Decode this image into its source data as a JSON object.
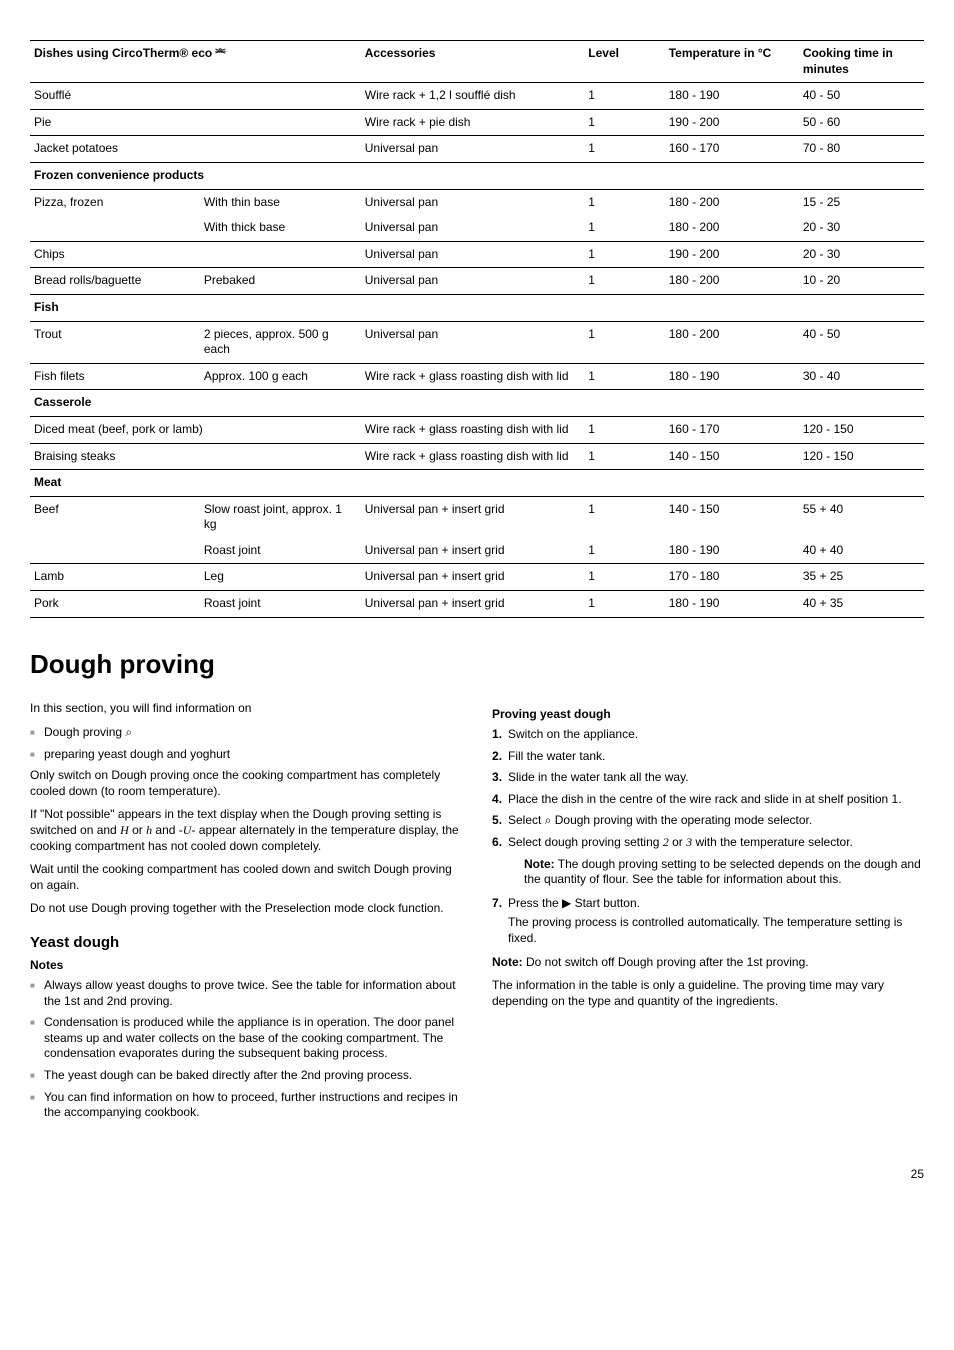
{
  "table": {
    "headers": [
      "Dishes using CircoTherm® eco ⎃",
      "",
      "Accessories",
      "Level",
      "Temperature in °C",
      "Cooking time in minutes"
    ],
    "rows": [
      {
        "dish": "Soufflé",
        "note": "",
        "acc": "Wire rack + 1,2 l soufflé dish",
        "level": "1",
        "temp": "180 - 190",
        "time": "40 - 50"
      },
      {
        "dish": "Pie",
        "note": "",
        "acc": "Wire rack + pie dish",
        "level": "1",
        "temp": "190 - 200",
        "time": "50 - 60"
      },
      {
        "dish": "Jacket potatoes",
        "note": "",
        "acc": "Universal pan",
        "level": "1",
        "temp": "160 - 170",
        "time": "70 - 80"
      }
    ],
    "section1": "Frozen convenience products",
    "rows2": [
      {
        "dish": "Pizza, frozen",
        "note": "With thin base",
        "acc": "Universal pan",
        "level": "1",
        "temp": "180 - 200",
        "time": "15 - 25",
        "cls": "noborder"
      },
      {
        "dish": "",
        "note": "With thick base",
        "acc": "Universal pan",
        "level": "1",
        "temp": "180 - 200",
        "time": "20 - 30"
      },
      {
        "dish": "Chips",
        "note": "",
        "acc": "Universal pan",
        "level": "1",
        "temp": "190 - 200",
        "time": "20 - 30"
      },
      {
        "dish": "Bread rolls/baguette",
        "note": "Prebaked",
        "acc": "Universal pan",
        "level": "1",
        "temp": "180 - 200",
        "time": "10 - 20"
      }
    ],
    "section2": "Fish",
    "rows3": [
      {
        "dish": "Trout",
        "note": "2 pieces, approx. 500 g each",
        "acc": "Universal pan",
        "level": "1",
        "temp": "180 - 200",
        "time": "40 - 50"
      },
      {
        "dish": "Fish filets",
        "note": "Approx. 100 g each",
        "acc": "Wire rack + glass roasting dish with lid",
        "level": "1",
        "temp": "180 - 190",
        "time": "30 - 40"
      }
    ],
    "section3": "Casserole",
    "rows4": [
      {
        "dish": "Diced meat (beef, pork or lamb)",
        "note": "",
        "acc": "Wire rack + glass roasting dish with lid",
        "level": "1",
        "temp": "160 - 170",
        "time": "120 - 150",
        "span": true
      },
      {
        "dish": "Braising steaks",
        "note": "",
        "acc": "Wire rack + glass roasting dish with lid",
        "level": "1",
        "temp": "140 - 150",
        "time": "120 - 150",
        "span": true
      }
    ],
    "section4": "Meat",
    "rows5": [
      {
        "dish": "Beef",
        "note": "Slow roast joint, approx. 1 kg",
        "acc": "Universal pan + insert grid",
        "level": "1",
        "temp": "140 - 150",
        "time": "55 + 40",
        "cls": "noborder"
      },
      {
        "dish": "",
        "note": "Roast joint",
        "acc": "Universal pan + insert grid",
        "level": "1",
        "temp": "180 - 190",
        "time": "40 + 40"
      },
      {
        "dish": "Lamb",
        "note": "Leg",
        "acc": "Universal pan + insert grid",
        "level": "1",
        "temp": "170 - 180",
        "time": "35 + 25"
      },
      {
        "dish": "Pork",
        "note": "Roast joint",
        "acc": "Universal pan + insert grid",
        "level": "1",
        "temp": "180 - 190",
        "time": "40 + 35",
        "cls": "last-row"
      }
    ]
  },
  "heading": "Dough proving",
  "left": {
    "intro": "In this section, you will find information on",
    "b1": "Dough proving ⌕",
    "b2": "preparing yeast dough and yoghurt",
    "p1": "Only switch on Dough proving once the cooking compartment has completely cooled down (to room temperature).",
    "p3": "Wait until the cooking compartment has cooled down and switch Dough proving on again.",
    "p4": "Do not use Dough proving together with the Preselection mode clock function.",
    "h2": "Yeast dough",
    "h3": "Notes",
    "n1": "Always allow yeast doughs to prove twice. See the table for information about the 1st and 2nd proving.",
    "n2": "Condensation is produced while the appliance is in operation. The door panel steams up and water collects on the base of the cooking compartment. The condensation evaporates during the subsequent baking process.",
    "n3": "The yeast dough can be baked directly after the 2nd proving process.",
    "n4": "You can find information on how to proceed, further instructions and recipes in the accompanying cookbook."
  },
  "right": {
    "h3": "Proving yeast dough",
    "s1": "Switch on the appliance.",
    "s2": "Fill the water tank.",
    "s3": "Slide in the water tank all the way.",
    "s4": "Place the dish in the centre of the wire rack and slide in at shelf position 1.",
    "s7": "Press the ▶ Start button.",
    "s7b": "The proving process is controlled automatically. The temperature setting is fixed.",
    "note1a": "Note:",
    "note1b": " The dough proving setting to be selected depends on the dough and the quantity of flour. See the table for information about this.",
    "note2a": "Note:",
    "note2b": " Do not switch off Dough proving after the 1st proving.",
    "p1": "The information in the table is only a guideline. The proving time may vary depending on the type and quantity of the ingredients."
  },
  "page": "25"
}
